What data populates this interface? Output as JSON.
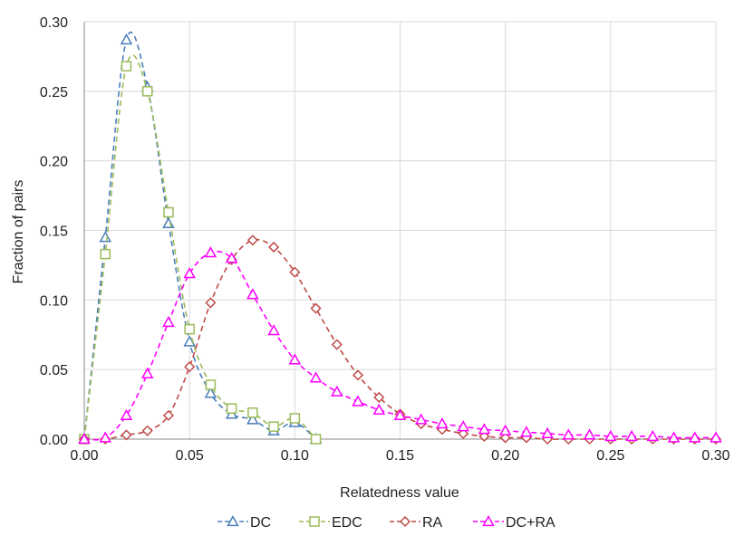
{
  "chart_data": {
    "type": "line",
    "title": "",
    "xlabel": "Relatedness value",
    "ylabel": "Fraction of pairs",
    "xlim": [
      0,
      0.3
    ],
    "ylim": [
      0,
      0.3
    ],
    "xticks": [
      "0.00",
      "0.05",
      "0.10",
      "0.15",
      "0.20",
      "0.25",
      "0.30"
    ],
    "yticks": [
      "0.00",
      "0.05",
      "0.10",
      "0.15",
      "0.20",
      "0.25",
      "0.30"
    ],
    "grid": true,
    "legend_position": "bottom",
    "series": [
      {
        "name": "DC",
        "color": "#4a7ebb",
        "marker": "triangle",
        "x": [
          0,
          0.01,
          0.02,
          0.03,
          0.04,
          0.05,
          0.06,
          0.07,
          0.08,
          0.09,
          0.1,
          0.11
        ],
        "y": [
          0,
          0.145,
          0.287,
          0.253,
          0.155,
          0.07,
          0.033,
          0.018,
          0.014,
          0.006,
          0.012,
          0.0
        ]
      },
      {
        "name": "EDC",
        "color": "#9bbb59",
        "marker": "square",
        "x": [
          0,
          0.01,
          0.02,
          0.03,
          0.04,
          0.05,
          0.06,
          0.07,
          0.08,
          0.09,
          0.1,
          0.11
        ],
        "y": [
          0,
          0.133,
          0.268,
          0.25,
          0.163,
          0.079,
          0.039,
          0.022,
          0.019,
          0.009,
          0.015,
          0.0
        ]
      },
      {
        "name": "RA",
        "color": "#be4b48",
        "marker": "diamond",
        "x": [
          0,
          0.01,
          0.02,
          0.03,
          0.04,
          0.05,
          0.06,
          0.07,
          0.08,
          0.09,
          0.1,
          0.11,
          0.12,
          0.13,
          0.14,
          0.15,
          0.16,
          0.17,
          0.18,
          0.19,
          0.2,
          0.21,
          0.22,
          0.23,
          0.24,
          0.25,
          0.26,
          0.27,
          0.28,
          0.29,
          0.3
        ],
        "y": [
          0,
          0.0,
          0.003,
          0.006,
          0.017,
          0.052,
          0.098,
          0.129,
          0.143,
          0.138,
          0.12,
          0.094,
          0.068,
          0.046,
          0.03,
          0.018,
          0.011,
          0.007,
          0.004,
          0.002,
          0.001,
          0.001,
          0.0,
          0.0,
          0.0,
          0.0,
          0.0,
          0.0,
          0.0,
          0.0,
          0.0
        ]
      },
      {
        "name": "DC+RA",
        "color": "#ff00ff",
        "marker": "triangle",
        "x": [
          0,
          0.01,
          0.02,
          0.03,
          0.04,
          0.05,
          0.06,
          0.07,
          0.08,
          0.09,
          0.1,
          0.11,
          0.12,
          0.13,
          0.14,
          0.15,
          0.16,
          0.17,
          0.18,
          0.19,
          0.2,
          0.21,
          0.22,
          0.23,
          0.24,
          0.25,
          0.26,
          0.27,
          0.28,
          0.29,
          0.3
        ],
        "y": [
          0,
          0.001,
          0.017,
          0.047,
          0.084,
          0.119,
          0.134,
          0.13,
          0.104,
          0.078,
          0.057,
          0.044,
          0.034,
          0.027,
          0.021,
          0.017,
          0.014,
          0.011,
          0.009,
          0.007,
          0.006,
          0.005,
          0.004,
          0.003,
          0.003,
          0.002,
          0.002,
          0.002,
          0.001,
          0.001,
          0.001
        ]
      }
    ]
  }
}
